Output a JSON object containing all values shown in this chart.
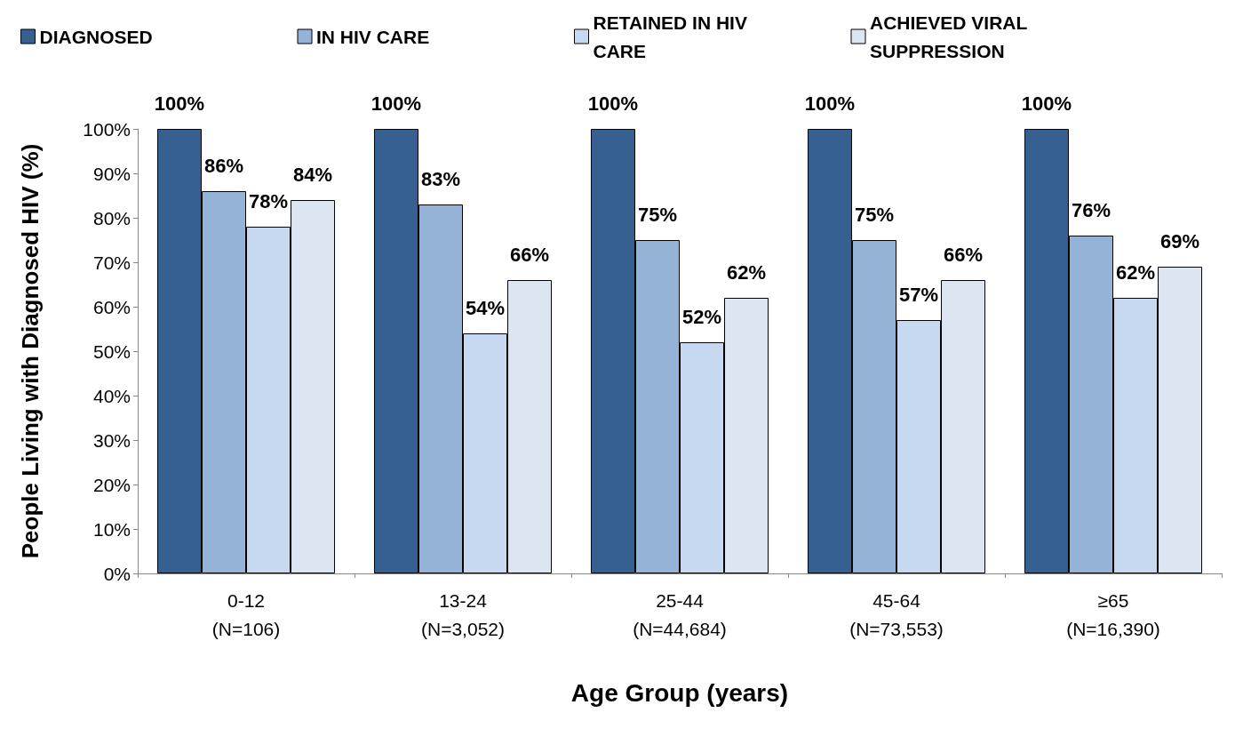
{
  "chart_data": {
    "type": "bar",
    "xlabel": "Age Group (years)",
    "ylabel": "People Living with Diagnosed HIV (%)",
    "categories": [
      "0-12\n(N=106)",
      "13-24\n(N=3,052)",
      "25-44\n(N=44,684)",
      "45-64\n(N=73,553)",
      "≥65\n(N=16,390)"
    ],
    "series": [
      {
        "name": "DIAGNOSED",
        "color": "#36608f",
        "values": [
          100,
          100,
          100,
          100,
          100
        ],
        "value_labels": [
          "100%",
          "100%",
          "100%",
          "100%",
          "100%"
        ]
      },
      {
        "name": "IN HIV CARE",
        "color": "#95b3d7",
        "values": [
          86,
          83,
          75,
          75,
          76
        ],
        "value_labels": [
          "86%",
          "83%",
          "75%",
          "75%",
          "76%"
        ]
      },
      {
        "name": "RETAINED IN HIV CARE",
        "color": "#c6d9f1",
        "values": [
          78,
          54,
          52,
          57,
          62
        ],
        "value_labels": [
          "78%",
          "54%",
          "52%",
          "57%",
          "62%"
        ]
      },
      {
        "name": "ACHIEVED VIRAL SUPPRESSION",
        "color": "#dce6f2",
        "values": [
          84,
          66,
          62,
          66,
          69
        ],
        "value_labels": [
          "84%",
          "66%",
          "62%",
          "66%",
          "69%"
        ]
      }
    ],
    "ylim": [
      0,
      100
    ],
    "yticks": [
      {
        "value": 0,
        "label": "0%"
      },
      {
        "value": 10,
        "label": "10%"
      },
      {
        "value": 20,
        "label": "20%"
      },
      {
        "value": 30,
        "label": "30%"
      },
      {
        "value": 40,
        "label": "40%"
      },
      {
        "value": 50,
        "label": "50%"
      },
      {
        "value": 60,
        "label": "60%"
      },
      {
        "value": 70,
        "label": "70%"
      },
      {
        "value": 80,
        "label": "80%"
      },
      {
        "value": 90,
        "label": "90%"
      },
      {
        "value": 100,
        "label": "100%"
      }
    ],
    "grid": false,
    "legend": "top"
  }
}
